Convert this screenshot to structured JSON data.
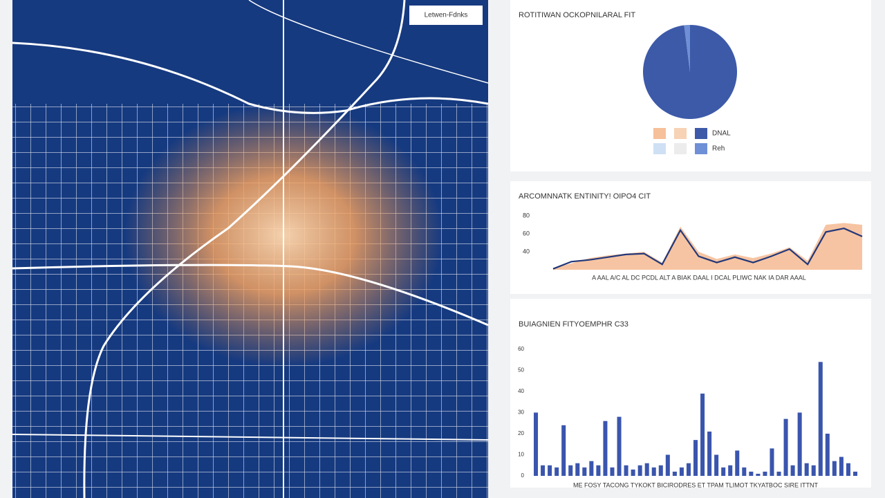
{
  "map": {
    "button": "Letwen-Fdnks"
  },
  "chart_data": [
    {
      "type": "pie",
      "title": "ROTITIWAN OCKOPNILARAL FIT",
      "categories": [
        "DNAL",
        "Reh"
      ],
      "values": [
        98,
        2
      ],
      "colors": [
        "#3d5aa8",
        "#6f8fd6"
      ]
    },
    {
      "type": "line",
      "title": "ARCOMNNATK ENTINITY! OIPO4 CIT",
      "x_label": "A AAL A/C AL DC PCDL ALT A BIAK DAAL I DCAL PLIWC NAK IA DAR AAAL",
      "ylim": [
        20,
        90
      ],
      "yticks": [
        40,
        60,
        80
      ],
      "series": [
        {
          "color": "#f6c4a2",
          "fill": true,
          "values": [
            22,
            27,
            33,
            36,
            38,
            40,
            28,
            68,
            40,
            32,
            37,
            33,
            38,
            45,
            30,
            70,
            72,
            70
          ]
        },
        {
          "color": "#22387a",
          "fill": false,
          "values": [
            21,
            29,
            31,
            34,
            37,
            38,
            26,
            64,
            35,
            28,
            34,
            28,
            35,
            43,
            26,
            62,
            66,
            57
          ]
        }
      ]
    },
    {
      "type": "bar",
      "title": "BUIAGNIEN FITYOEMPHR C33",
      "x_label": "ME FOSY TACONG TYKOKT BICIRODRES ET TPAM TLIMOT TKYATBOC SIRE ITTNT",
      "color": "#3a55ad",
      "ylim": [
        0,
        60
      ],
      "yticks": [
        0,
        10,
        20,
        30,
        40,
        50,
        60
      ],
      "values": [
        30,
        5,
        5,
        4,
        24,
        5,
        6,
        4,
        7,
        5,
        26,
        4,
        28,
        5,
        3,
        5,
        6,
        4,
        5,
        10,
        2,
        4,
        6,
        17,
        39,
        21,
        10,
        4,
        5,
        12,
        4,
        2,
        1,
        2,
        13,
        2,
        27,
        5,
        30,
        6,
        5,
        54,
        20,
        7,
        9,
        6,
        2
      ]
    }
  ]
}
